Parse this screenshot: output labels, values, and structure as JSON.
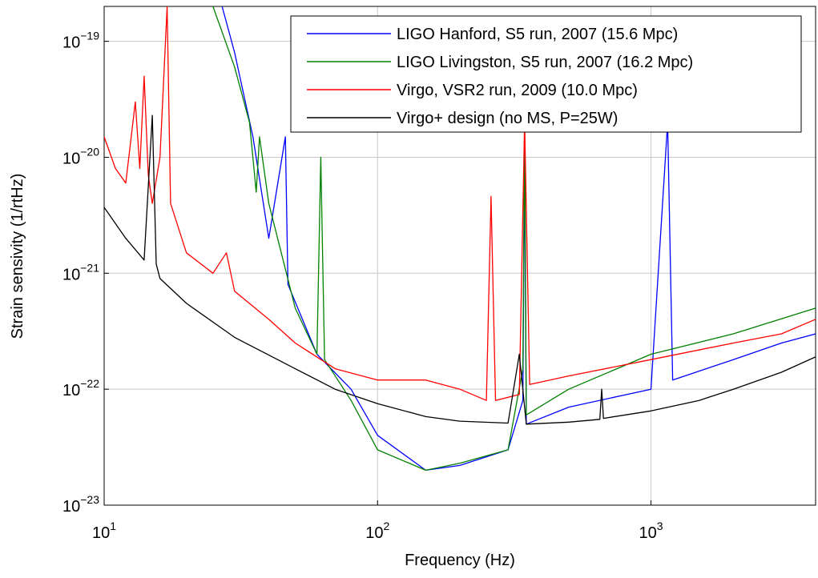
{
  "chart_data": {
    "type": "line",
    "xlabel": "Frequency (Hz)",
    "ylabel": "Strain sensivity (1/rtHz)",
    "log_x": true,
    "log_y": true,
    "grid": true,
    "legend": "upper right",
    "xlim": [
      10,
      4000
    ],
    "ylim": [
      1e-23,
      2e-19
    ],
    "xticks": [
      {
        "value": 10,
        "label": "101"
      },
      {
        "value": 100,
        "label": "102"
      },
      {
        "value": 1000,
        "label": "103"
      }
    ],
    "yticks": [
      {
        "value": 1e-23,
        "label": "10−23"
      },
      {
        "value": 1e-22,
        "label": "10−22"
      },
      {
        "value": 1e-21,
        "label": "10−21"
      },
      {
        "value": 1e-20,
        "label": "10−20"
      },
      {
        "value": 1e-19,
        "label": "10−19"
      }
    ],
    "series": [
      {
        "name": "LIGO Hanford, S5 run, 2007 (15.6 Mpc)",
        "color": "#0000ff",
        "x": [
          27,
          30,
          35,
          40,
          46,
          47,
          60,
          80,
          100,
          150,
          200,
          300,
          340,
          345,
          350,
          500,
          1000,
          1150,
          1200,
          2000,
          3000,
          4000
        ],
        "values": [
          2e-19,
          8e-20,
          1.5e-20,
          2e-21,
          1.5e-20,
          8e-22,
          2e-22,
          1e-22,
          4e-23,
          2e-23,
          2.2e-23,
          3e-23,
          8e-23,
          1e-20,
          5e-23,
          7e-23,
          1e-22,
          2e-20,
          1.2e-22,
          1.8e-22,
          2.5e-22,
          3e-22
        ]
      },
      {
        "name": "LIGO Livingston, S5 run, 2007 (16.2 Mpc)",
        "color": "#008000",
        "x": [
          25,
          30,
          34,
          36,
          37,
          40,
          50,
          60,
          62,
          64,
          80,
          100,
          150,
          200,
          300,
          340,
          345,
          350,
          500,
          1000,
          2000,
          4000
        ],
        "values": [
          2e-19,
          6e-20,
          2e-20,
          5e-21,
          1.5e-20,
          4e-21,
          5e-22,
          2e-22,
          1e-20,
          1.8e-22,
          8e-23,
          3e-23,
          2e-23,
          2.3e-23,
          3e-23,
          1.5e-22,
          2e-20,
          6e-23,
          1e-22,
          2e-22,
          3e-22,
          5e-22
        ]
      },
      {
        "name": "Virgo, VSR2 run, 2009 (10.0 Mpc)",
        "color": "#ff0000",
        "x": [
          10,
          11,
          12,
          13,
          13.5,
          14,
          14.5,
          15,
          16,
          17,
          17.5,
          20,
          25,
          28,
          30,
          40,
          50,
          70,
          100,
          150,
          200,
          250,
          260,
          270,
          330,
          345,
          360,
          500,
          1000,
          2000,
          3000,
          4000
        ],
        "values": [
          1.5e-20,
          8e-21,
          6e-21,
          3e-20,
          8e-21,
          5e-20,
          7e-21,
          4e-21,
          1e-20,
          2e-19,
          4e-21,
          1.5e-21,
          1e-21,
          1.5e-21,
          7e-22,
          4e-22,
          2.5e-22,
          1.5e-22,
          1.2e-22,
          1.2e-22,
          1e-22,
          8e-23,
          4.6e-21,
          8e-23,
          9e-23,
          2e-20,
          1.1e-22,
          1.3e-22,
          1.8e-22,
          2.5e-22,
          3e-22,
          4e-22
        ]
      },
      {
        "name": "Virgo+ design (no MS, P=25W)",
        "color": "#000000",
        "x": [
          10,
          12,
          14,
          15,
          15.5,
          16,
          20,
          30,
          50,
          70,
          100,
          150,
          200,
          300,
          330,
          350,
          500,
          650,
          660,
          670,
          1000,
          1500,
          2000,
          3000,
          4000
        ],
        "values": [
          3.7e-21,
          2e-21,
          1.3e-21,
          2.3e-20,
          1.2e-21,
          9e-22,
          5.5e-22,
          2.8e-22,
          1.5e-22,
          1e-22,
          7.5e-23,
          5.8e-23,
          5.3e-23,
          5.1e-23,
          2e-22,
          5e-23,
          5.2e-23,
          5.5e-23,
          1e-22,
          5.6e-23,
          6.5e-23,
          8e-23,
          1e-22,
          1.4e-22,
          1.9e-22
        ]
      }
    ]
  }
}
